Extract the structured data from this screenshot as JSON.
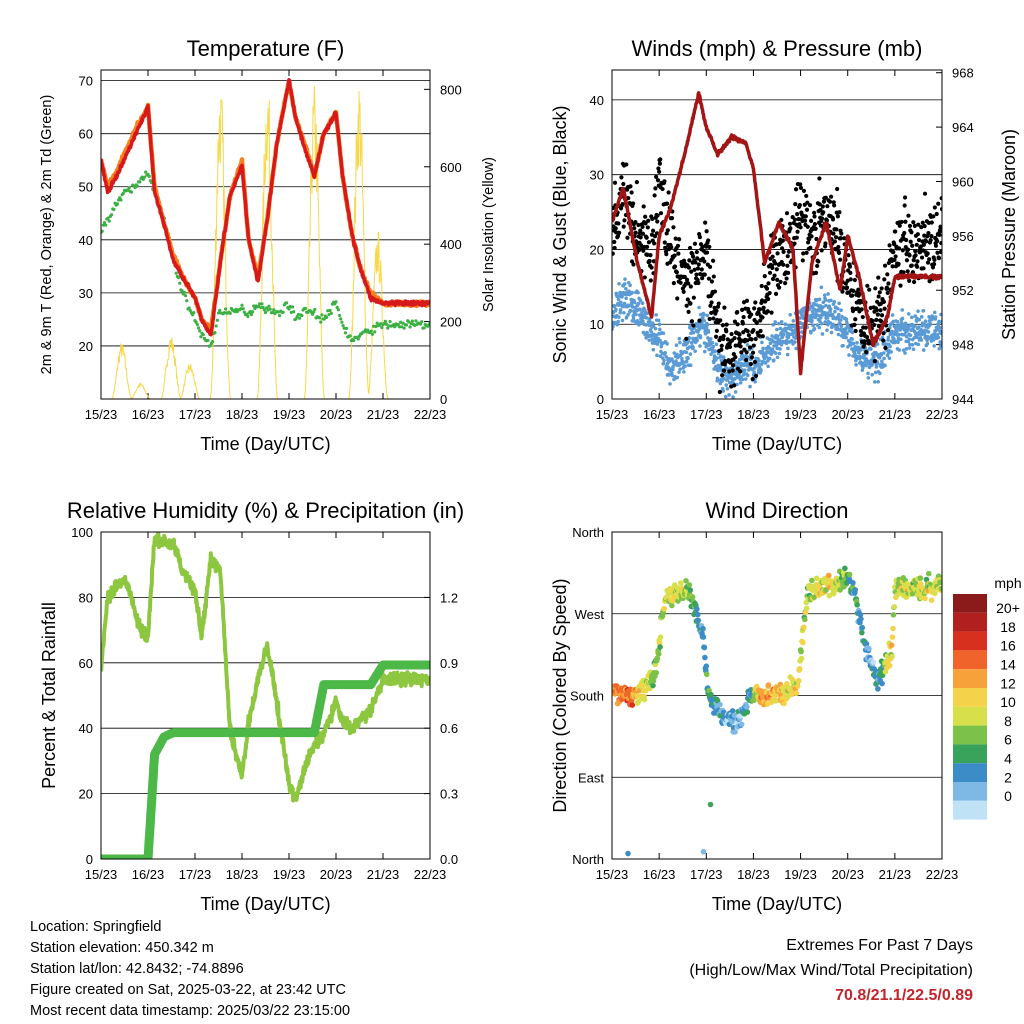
{
  "x_tick_labels": [
    "15/23",
    "16/23",
    "17/23",
    "18/23",
    "19/23",
    "20/23",
    "21/23",
    "22/23"
  ],
  "x_axis_label": "Time (Day/UTC)",
  "colors": {
    "temp_2m": "#d7191c",
    "temp_9m": "#f58220",
    "dewpoint": "#3cb043",
    "solar": "#f7d84a",
    "wind": "#5b9bd5",
    "gust": "#000000",
    "pressure": "#a31515",
    "rh": "#8dc63f",
    "precip": "#4cb848",
    "extremes": "#c0272d"
  },
  "chart_data": [
    {
      "type": "line",
      "title": "Temperature (F)",
      "xlabel": "Time (Day/UTC)",
      "ylabel": "2m & 9m T (Red, Orange) & 2m Td (Green)",
      "y2label": "Solar Insolation (Yellow)",
      "ylim": [
        10,
        72
      ],
      "y2lim": [
        0,
        850
      ],
      "yticks": [
        20,
        30,
        40,
        50,
        60,
        70
      ],
      "y2ticks": [
        0,
        200,
        400,
        600,
        800
      ],
      "x": [
        15.96,
        16.1,
        16.3,
        16.5,
        16.7,
        16.96,
        17.1,
        17.3,
        17.5,
        17.7,
        17.96,
        18.1,
        18.3,
        18.5,
        18.7,
        18.96,
        19.1,
        19.3,
        19.5,
        19.7,
        19.96,
        20.1,
        20.3,
        20.5,
        20.7,
        20.96,
        21.1,
        21.3,
        21.5,
        21.7,
        21.96
      ],
      "series": [
        {
          "name": "2m T",
          "values": [
            55,
            49,
            52,
            56,
            60,
            65,
            49,
            43,
            36,
            33,
            29,
            25,
            22,
            36,
            48,
            54,
            40,
            32,
            44,
            58,
            70,
            63,
            57,
            52,
            60,
            64,
            52,
            41,
            34,
            29,
            28
          ]
        },
        {
          "name": "9m T",
          "values": [
            55,
            50,
            53,
            57,
            61,
            65,
            50,
            43,
            37,
            33,
            29,
            25,
            23,
            36,
            48,
            55,
            40,
            33,
            44,
            58,
            70,
            63,
            58,
            52,
            60,
            64,
            52,
            41,
            34,
            30,
            28
          ]
        },
        {
          "name": "2m Td",
          "values": [
            41,
            44,
            47,
            49,
            50,
            53,
            49,
            44,
            36,
            30,
            25,
            22,
            20,
            27,
            26,
            27,
            26,
            28,
            27,
            26,
            28,
            25,
            27,
            26,
            25,
            28,
            24,
            21,
            22,
            23,
            24
          ]
        },
        {
          "name": "Solar Insolation",
          "values": [
            0,
            0,
            0,
            130,
            0,
            0,
            0,
            150,
            0,
            0,
            0,
            0,
            0,
            760,
            0,
            0,
            0,
            0,
            780,
            0,
            0,
            0,
            0,
            800,
            0,
            0,
            0,
            0,
            780,
            0,
            0
          ]
        }
      ]
    },
    {
      "type": "scatter",
      "title": "Winds (mph) & Pressure (mb)",
      "xlabel": "Time (Day/UTC)",
      "ylabel": "Sonic Wind & Gust (Blue, Black)",
      "y2label": "Station Pressure (Maroon)",
      "ylim": [
        0,
        44
      ],
      "y2lim": [
        944,
        968.2
      ],
      "yticks": [
        0,
        10,
        20,
        30,
        40
      ],
      "y2ticks": [
        944,
        948,
        952,
        956,
        960,
        964,
        968
      ],
      "x": [
        15.96,
        16.2,
        16.5,
        16.8,
        16.96,
        17.2,
        17.5,
        17.8,
        17.96,
        18.2,
        18.5,
        18.8,
        18.96,
        19.2,
        19.5,
        19.8,
        19.96,
        20.2,
        20.5,
        20.8,
        20.96,
        21.2,
        21.5,
        21.8,
        21.96
      ],
      "series": [
        {
          "name": "Sonic Wind",
          "values": [
            11,
            14,
            12,
            9,
            8,
            4,
            6,
            10,
            9,
            4,
            3,
            5,
            4,
            6,
            8,
            9,
            10,
            11,
            12,
            10,
            9,
            6,
            5,
            7,
            9
          ]
        },
        {
          "name": "Gust",
          "values": [
            23,
            27,
            22,
            20,
            29,
            21,
            15,
            17,
            20,
            8,
            6,
            10,
            8,
            14,
            19,
            22,
            25,
            22,
            24,
            21,
            17,
            12,
            10,
            14,
            21
          ]
        },
        {
          "name": "Station Pressure",
          "values": [
            957,
            959.5,
            954,
            950,
            956,
            958,
            962,
            966.5,
            964,
            962,
            963.3,
            962.8,
            961,
            954,
            957,
            955,
            946,
            954,
            957,
            952,
            956,
            953,
            948,
            950,
            953
          ]
        }
      ]
    },
    {
      "type": "line",
      "title": "Relative Humidity (%) & Precipitation (in)",
      "xlabel": "Time (Day/UTC)",
      "ylabel": "Percent & Total Rainfall",
      "ylim": [
        0,
        100
      ],
      "y2lim": [
        0,
        1.5
      ],
      "yticks": [
        0,
        20,
        40,
        60,
        80,
        100
      ],
      "y2ticks": [
        "0.0",
        "0.3",
        "0.6",
        "0.9",
        "1.2"
      ],
      "x": [
        15.96,
        16.1,
        16.3,
        16.5,
        16.8,
        16.96,
        17.1,
        17.3,
        17.5,
        17.7,
        17.96,
        18.1,
        18.3,
        18.5,
        18.7,
        18.96,
        19.1,
        19.3,
        19.5,
        19.7,
        19.96,
        20.1,
        20.3,
        20.5,
        20.7,
        20.96,
        21.1,
        21.3,
        21.5,
        21.7,
        21.96
      ],
      "series": [
        {
          "name": "Relative Humidity",
          "values": [
            58,
            80,
            84,
            85,
            70,
            68,
            98,
            97,
            96,
            88,
            82,
            68,
            92,
            88,
            40,
            25,
            42,
            55,
            65,
            48,
            23,
            18,
            28,
            35,
            38,
            48,
            42,
            40,
            43,
            45,
            55
          ]
        },
        {
          "name": "Total Precipitation",
          "values": [
            0,
            0,
            0,
            0,
            0,
            0,
            0.48,
            0.56,
            0.58,
            0.58,
            0.58,
            0.58,
            0.58,
            0.58,
            0.58,
            0.58,
            0.58,
            0.58,
            0.58,
            0.58,
            0.58,
            0.58,
            0.58,
            0.58,
            0.8,
            0.8,
            0.8,
            0.8,
            0.8,
            0.8,
            0.89
          ]
        }
      ]
    },
    {
      "type": "scatter",
      "title": "Wind Direction",
      "xlabel": "Time (Day/UTC)",
      "ylabel": "Direction (Colored By Speed)",
      "yticks": [
        "North",
        "East",
        "South",
        "West",
        "North"
      ],
      "ylim": [
        0,
        360
      ],
      "legend_title": "mph",
      "legend_labels": [
        "20+",
        "18",
        "16",
        "14",
        "12",
        "10",
        "8",
        "6",
        "4",
        "2",
        "0"
      ],
      "legend_colors": [
        "#8b1a1a",
        "#b21f1f",
        "#d7301f",
        "#f0642b",
        "#f7a13b",
        "#f4d24a",
        "#d7e04a",
        "#7cc24a",
        "#3aa35b",
        "#3c8cc7",
        "#7eb9e6",
        "#bfe2f6"
      ],
      "legend_position": "right",
      "x": [
        15.96,
        16.3,
        16.6,
        16.9,
        17.1,
        17.3,
        17.6,
        17.9,
        18.0,
        18.3,
        18.6,
        18.9,
        19.1,
        19.3,
        19.6,
        19.9,
        20.1,
        20.3,
        20.6,
        20.9,
        21.1,
        21.3,
        21.6,
        21.9,
        21.96
      ],
      "values": [
        182,
        182,
        184,
        210,
        290,
        292,
        295,
        245,
        180,
        160,
        150,
        180,
        181,
        180,
        182,
        190,
        290,
        300,
        300,
        310,
        295,
        240,
        195,
        230,
        300
      ],
      "speeds": [
        14,
        16,
        12,
        8,
        10,
        10,
        8,
        4,
        6,
        3,
        2,
        4,
        14,
        13,
        12,
        10,
        9,
        11,
        11,
        8,
        5,
        3,
        4,
        12,
        10
      ]
    }
  ],
  "meta": {
    "location": "Location: Springfield",
    "elevation": "Station elevation: 450.342 m",
    "latlon": "Station lat/lon: 42.8432; -74.8896",
    "created": "Figure created on Sat, 2025-03-22, at 23:42 UTC",
    "recent": "Most recent data timestamp: 2025/03/22 23:15:00"
  },
  "extremes": {
    "heading": "Extremes For Past 7 Days",
    "subheading": "(High/Low/Max Wind/Total Precipitation)",
    "values": "70.8/21.1/22.5/0.89"
  }
}
